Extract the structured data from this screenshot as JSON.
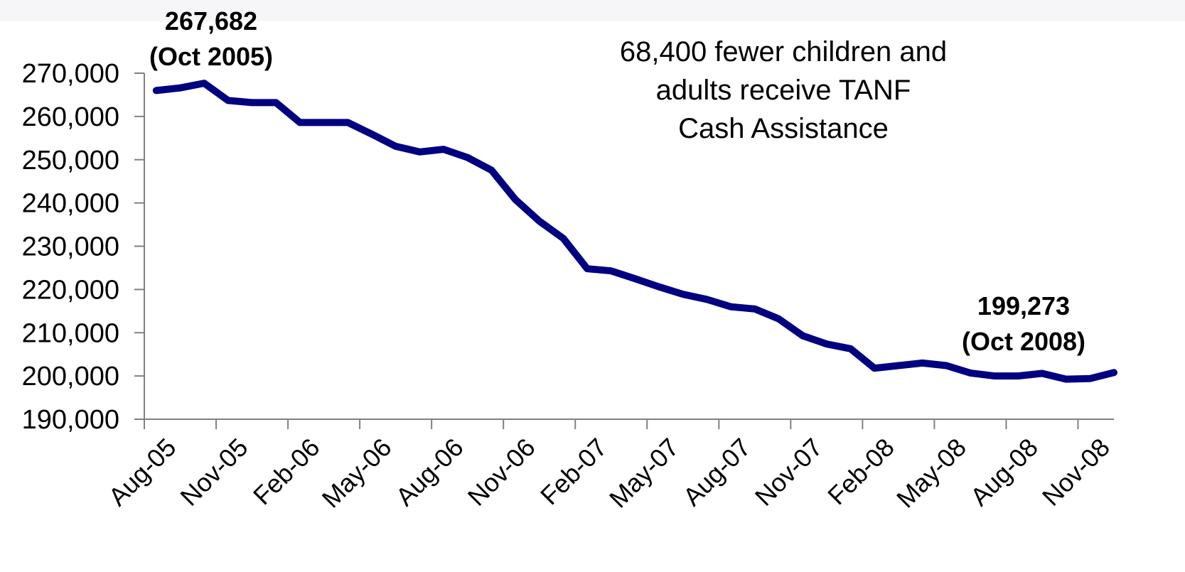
{
  "chart_data": {
    "type": "line",
    "title": "",
    "xlabel": "",
    "ylabel": "",
    "ylim": [
      190000,
      270000
    ],
    "y_ticks": [
      "190,000",
      "200,000",
      "210,000",
      "220,000",
      "230,000",
      "240,000",
      "250,000",
      "260,000",
      "270,000"
    ],
    "x_ticks": [
      "Aug-05",
      "Nov-05",
      "Feb-06",
      "May-06",
      "Aug-06",
      "Nov-06",
      "Feb-07",
      "May-07",
      "Aug-07",
      "Nov-07",
      "Feb-08",
      "May-08",
      "Aug-08",
      "Nov-08"
    ],
    "grid": false,
    "legend": "none",
    "line_color": "#000080",
    "series": [
      {
        "x": [
          "Aug-05",
          "Sep-05",
          "Oct-05",
          "Nov-05",
          "Dec-05",
          "Jan-06",
          "Feb-06",
          "Mar-06",
          "Apr-06",
          "May-06",
          "Jun-06",
          "Jul-06",
          "Aug-06",
          "Sep-06",
          "Oct-06",
          "Nov-06",
          "Dec-06",
          "Jan-07",
          "Feb-07",
          "Mar-07",
          "Apr-07",
          "May-07",
          "Jun-07",
          "Jul-07",
          "Aug-07",
          "Sep-07",
          "Oct-07",
          "Nov-07",
          "Dec-07",
          "Jan-08",
          "Feb-08",
          "Mar-08",
          "Apr-08",
          "May-08",
          "Jun-08",
          "Jul-08",
          "Aug-08",
          "Sep-08",
          "Oct-08",
          "Nov-08",
          "Dec-08"
        ],
        "values": [
          266000,
          266600,
          267682,
          263700,
          263200,
          263200,
          258600,
          258600,
          258600,
          255900,
          253100,
          251800,
          252400,
          250500,
          247600,
          240800,
          235800,
          231800,
          224800,
          224300,
          222500,
          220600,
          218900,
          217700,
          216000,
          215500,
          213200,
          209300,
          207400,
          206300,
          201800,
          202400,
          203000,
          202400,
          200700,
          200000,
          200000,
          200600,
          199273,
          199400,
          200800
        ]
      }
    ],
    "annotations": [
      {
        "value": "267,682",
        "date": "(Oct 2005)"
      },
      {
        "value": "199,273",
        "date": "(Oct 2008)"
      }
    ],
    "callout": [
      "68,400 fewer children and",
      "adults receive TANF",
      "Cash Assistance"
    ]
  }
}
